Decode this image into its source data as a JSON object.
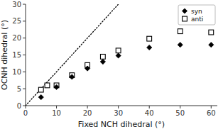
{
  "chart_data": {
    "type": "scatter",
    "xlabel": "Fixed NCH dihedral (°)",
    "ylabel": "OCNH dihedral (°)",
    "series": [
      {
        "name": "syn",
        "color": "#000000",
        "marker": "diamond",
        "x": [
          5,
          10,
          15,
          20,
          25,
          30,
          40,
          50,
          60
        ],
        "values": [
          2.5,
          5.5,
          8.5,
          11.0,
          13.0,
          14.8,
          17.2,
          18.0,
          18.0
        ]
      },
      {
        "name": "anti",
        "color": "#000000",
        "marker": "open-square",
        "x": [
          5,
          7,
          10,
          15,
          20,
          25,
          30,
          40,
          50,
          60
        ],
        "values": [
          4.7,
          6.0,
          6.0,
          9.0,
          12.0,
          14.5,
          16.3,
          19.8,
          22.0,
          21.7
        ]
      },
      {
        "type": "line",
        "line_style": "dotted",
        "color": "#000000",
        "x": [
          0,
          30
        ],
        "values": [
          0,
          30
        ]
      }
    ],
    "xlim": [
      0,
      62
    ],
    "ylim": [
      0,
      30
    ],
    "xticks": [
      0,
      10,
      20,
      30,
      40,
      50,
      60
    ],
    "yticks": [
      0,
      5,
      10,
      15,
      20,
      25,
      30
    ],
    "grid": false,
    "legend": "upper right"
  }
}
